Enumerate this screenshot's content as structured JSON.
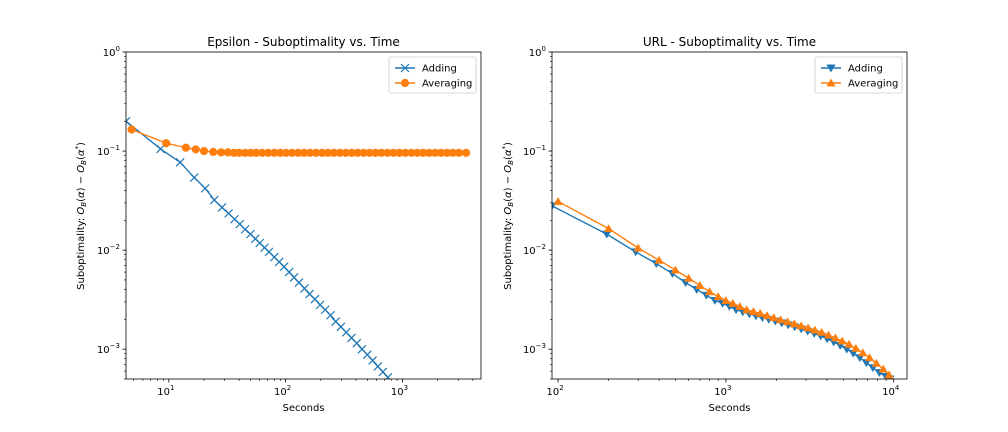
{
  "colors": {
    "adding": "#1f77b4",
    "averaging": "#ff7f0e"
  },
  "chart_data": [
    {
      "type": "line",
      "title": "Epsilon - Suboptimality vs. Time",
      "xlabel": "Seconds",
      "ylabel": "Suboptimality: O_B(α) − O_B(α*)",
      "xscale": "log",
      "yscale": "log",
      "xlim": [
        4.3,
        4700
      ],
      "ylim": [
        0.0005,
        1
      ],
      "xticks": [
        {
          "value": 10,
          "base": "10",
          "exp": "1"
        },
        {
          "value": 100,
          "base": "10",
          "exp": "2"
        },
        {
          "value": 1000,
          "base": "10",
          "exp": "3"
        }
      ],
      "yticks": [
        {
          "value": 0.001,
          "base": "10",
          "exp": "−3"
        },
        {
          "value": 0.01,
          "base": "10",
          "exp": "−2"
        },
        {
          "value": 0.1,
          "base": "10",
          "exp": "−1"
        },
        {
          "value": 1,
          "base": "10",
          "exp": "0"
        }
      ],
      "legend_position": "top-right",
      "series": [
        {
          "name": "Adding",
          "marker": "x",
          "color": "#1f77b4",
          "x": [
            4.3,
            8.5,
            12.5,
            16.5,
            20.5,
            24.5,
            28.5,
            32.5,
            36.5,
            40.5,
            45,
            50,
            55,
            60,
            66,
            72,
            80,
            88,
            97,
            107,
            118,
            130,
            145,
            160,
            178,
            197,
            218,
            242,
            268,
            297,
            330,
            366,
            406,
            450,
            500,
            555,
            615,
            680,
            750
          ],
          "y": [
            0.2,
            0.105,
            0.077,
            0.054,
            0.042,
            0.032,
            0.027,
            0.0235,
            0.0205,
            0.0183,
            0.0162,
            0.0145,
            0.013,
            0.0118,
            0.0106,
            0.0096,
            0.0085,
            0.0076,
            0.0068,
            0.006,
            0.0053,
            0.0047,
            0.0041,
            0.0036,
            0.0032,
            0.0028,
            0.0025,
            0.0022,
            0.0019,
            0.00168,
            0.00148,
            0.0013,
            0.00115,
            0.001,
            0.00088,
            0.00077,
            0.00067,
            0.00059,
            0.00052
          ]
        },
        {
          "name": "Averaging",
          "marker": "o",
          "color": "#ff7f0e",
          "x": [
            4.8,
            9.5,
            14,
            17,
            20,
            24,
            28,
            32,
            36,
            40,
            45,
            50,
            56,
            63,
            71,
            80,
            90,
            101,
            114,
            128,
            144,
            162,
            182,
            205,
            230,
            259,
            291,
            327,
            368,
            414,
            465,
            523,
            588,
            661,
            743,
            836,
            940,
            1057,
            1189,
            1337,
            1503,
            1690,
            1900,
            2137,
            2403,
            2702,
            3038,
            3500
          ],
          "y": [
            0.165,
            0.12,
            0.108,
            0.104,
            0.1,
            0.098,
            0.097,
            0.097,
            0.096,
            0.096,
            0.096,
            0.096,
            0.096,
            0.096,
            0.096,
            0.096,
            0.096,
            0.096,
            0.096,
            0.096,
            0.096,
            0.096,
            0.096,
            0.096,
            0.096,
            0.096,
            0.096,
            0.096,
            0.096,
            0.096,
            0.096,
            0.096,
            0.096,
            0.096,
            0.096,
            0.096,
            0.096,
            0.096,
            0.096,
            0.096,
            0.096,
            0.096,
            0.096,
            0.096,
            0.096,
            0.096,
            0.096,
            0.096
          ]
        }
      ]
    },
    {
      "type": "line",
      "title": "URL - Suboptimality vs. Time",
      "xlabel": "Seconds",
      "ylabel": "Suboptimality: O_B(α) − O_B(α*)",
      "xscale": "log",
      "yscale": "log",
      "xlim": [
        92,
        12000
      ],
      "ylim": [
        0.0005,
        1
      ],
      "xticks": [
        {
          "value": 100,
          "base": "10",
          "exp": "2"
        },
        {
          "value": 1000,
          "base": "10",
          "exp": "3"
        },
        {
          "value": 10000,
          "base": "10",
          "exp": "4"
        }
      ],
      "yticks": [
        {
          "value": 0.001,
          "base": "10",
          "exp": "−3"
        },
        {
          "value": 0.01,
          "base": "10",
          "exp": "−2"
        },
        {
          "value": 0.1,
          "base": "10",
          "exp": "−1"
        },
        {
          "value": 1,
          "base": "10",
          "exp": "0"
        }
      ],
      "legend_position": "top-right",
      "series": [
        {
          "name": "Adding",
          "marker": "v",
          "color": "#1f77b4",
          "x": [
            92,
            195,
            290,
            385,
            480,
            575,
            670,
            765,
            860,
            955,
            1050,
            1150,
            1260,
            1380,
            1510,
            1650,
            1800,
            1970,
            2150,
            2350,
            2570,
            2810,
            3070,
            3360,
            3670,
            4010,
            4390,
            4800,
            5250,
            5740,
            6280,
            6870,
            7510,
            8210,
            8980,
            9500
          ],
          "y": [
            0.028,
            0.0145,
            0.0096,
            0.0073,
            0.0058,
            0.0047,
            0.004,
            0.0035,
            0.0031,
            0.0029,
            0.0027,
            0.0025,
            0.00238,
            0.00227,
            0.00217,
            0.00208,
            0.002,
            0.00192,
            0.00184,
            0.00176,
            0.00168,
            0.0016,
            0.00152,
            0.00144,
            0.00136,
            0.00127,
            0.00118,
            0.00109,
            0.001,
            0.00091,
            0.00082,
            0.00073,
            0.00065,
            0.00058,
            0.00053,
            0.0005
          ]
        },
        {
          "name": "Averaging",
          "marker": "^",
          "color": "#ff7f0e",
          "x": [
            100,
            200,
            300,
            400,
            500,
            600,
            700,
            800,
            900,
            1000,
            1100,
            1210,
            1330,
            1460,
            1600,
            1760,
            1930,
            2120,
            2330,
            2560,
            2810,
            3090,
            3390,
            3720,
            4090,
            4490,
            4930,
            5420,
            5950,
            6540,
            7180,
            7890,
            8660,
            9400
          ],
          "y": [
            0.031,
            0.0165,
            0.0105,
            0.0079,
            0.0063,
            0.0052,
            0.0044,
            0.0038,
            0.0034,
            0.0031,
            0.0029,
            0.0027,
            0.0025,
            0.0024,
            0.0023,
            0.00218,
            0.00208,
            0.00198,
            0.00189,
            0.0018,
            0.00172,
            0.00164,
            0.00156,
            0.00148,
            0.00139,
            0.0013,
            0.00121,
            0.00112,
            0.00102,
            0.00092,
            0.00082,
            0.00072,
            0.00063,
            0.00055
          ]
        }
      ]
    }
  ]
}
